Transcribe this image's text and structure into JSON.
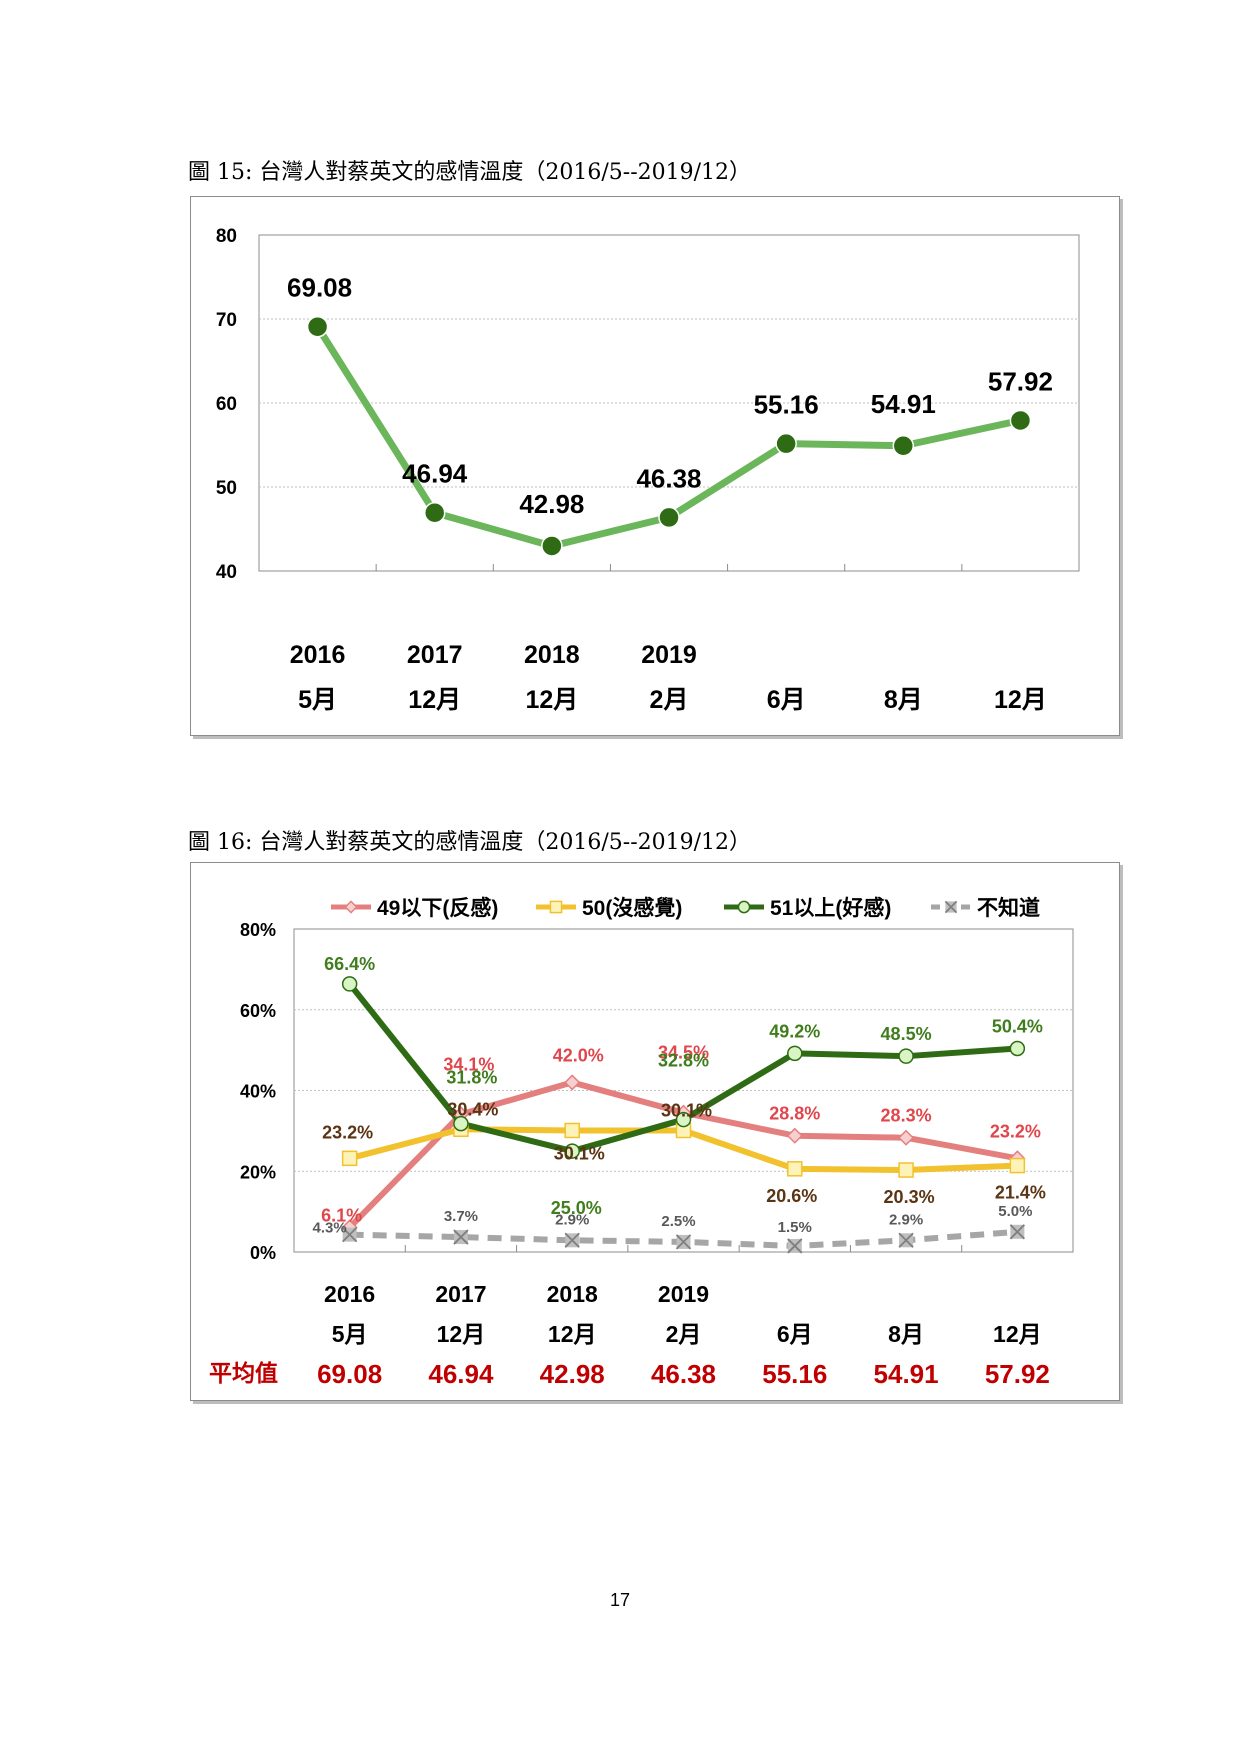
{
  "figure15": {
    "caption": "圖 15: 台灣人對蔡英文的感情溫度（2016/5--2019/12）",
    "chart_data": {
      "type": "line",
      "title": "",
      "categories": [
        [
          "2016",
          "5月"
        ],
        [
          "2017",
          "12月"
        ],
        [
          "2018",
          "12月"
        ],
        [
          "2019",
          "2月"
        ],
        [
          "",
          "6月"
        ],
        [
          "",
          "8月"
        ],
        [
          "",
          "12月"
        ]
      ],
      "series": [
        {
          "values": [
            69.08,
            46.94,
            42.98,
            46.38,
            55.16,
            54.91,
            57.92
          ]
        }
      ],
      "data_labels": [
        "69.08",
        "46.94",
        "42.98",
        "46.38",
        "55.16",
        "54.91",
        "57.92"
      ],
      "ylim": [
        40,
        80
      ],
      "yticks": [
        "40",
        "50",
        "60",
        "70",
        "80"
      ],
      "grid": true,
      "colors": {
        "line": "#6bb55a",
        "marker": "#2e6b14",
        "marker_edge": "#ffffff",
        "grid": "#bfbfbf"
      }
    }
  },
  "figure16": {
    "caption": "圖 16: 台灣人對蔡英文的感情溫度（2016/5--2019/12）",
    "chart_data": {
      "type": "line",
      "title": "",
      "categories": [
        [
          "2016",
          "5月"
        ],
        [
          "2017",
          "12月"
        ],
        [
          "2018",
          "12月"
        ],
        [
          "2019",
          "2月"
        ],
        [
          "",
          "6月"
        ],
        [
          "",
          "8月"
        ],
        [
          "",
          "12月"
        ]
      ],
      "ylim": [
        0,
        80
      ],
      "yticks": [
        "0%",
        "20%",
        "40%",
        "60%",
        "80%"
      ],
      "grid": true,
      "legend_position": "top",
      "series": [
        {
          "name": "49以下(反感)",
          "values": [
            6.1,
            34.1,
            42.0,
            34.5,
            28.8,
            28.3,
            23.2
          ],
          "labels": [
            "6.1%",
            "34.1%",
            "42.0%",
            "34.5%",
            "28.8%",
            "28.3%",
            "23.2%"
          ],
          "color": "#e3807f",
          "label_color": "#e0474c",
          "marker": "diamond",
          "marker_fill": "#f7cfcf",
          "dash": false
        },
        {
          "name": "50(沒感覺)",
          "values": [
            23.2,
            30.4,
            30.1,
            30.1,
            20.6,
            20.3,
            21.4
          ],
          "labels": [
            "23.2%",
            "30.4%",
            "30.1%",
            "30.1%",
            "20.6%",
            "20.3%",
            "21.4%"
          ],
          "color": "#f2c12e",
          "label_color": "#5b3413",
          "marker": "square",
          "marker_fill": "#fdf3b8",
          "dash": false
        },
        {
          "name": "51以上(好感)",
          "values": [
            66.4,
            31.8,
            25.0,
            32.8,
            49.2,
            48.5,
            50.4
          ],
          "labels": [
            "66.4%",
            "31.8%",
            "25.0%",
            "32.8%",
            "49.2%",
            "48.5%",
            "50.4%"
          ],
          "color": "#2e6b14",
          "label_color": "#3f7d1d",
          "marker": "circle",
          "marker_fill": "#d9f5c4",
          "dash": false
        },
        {
          "name": "不知道",
          "values": [
            4.3,
            3.7,
            2.9,
            2.5,
            1.5,
            2.9,
            5.0
          ],
          "labels": [
            "4.3%",
            "3.7%",
            "2.9%",
            "2.5%",
            "1.5%",
            "2.9%",
            "5.0%"
          ],
          "color": "#a6a6a6",
          "label_color": "#595959",
          "marker": "x",
          "marker_fill": "#bfbfbf",
          "dash": true
        }
      ],
      "average_row": {
        "label": "平均值",
        "values": [
          "69.08",
          "46.94",
          "42.98",
          "46.38",
          "55.16",
          "54.91",
          "57.92"
        ],
        "color": "#c00000"
      }
    }
  },
  "page_number": "17"
}
